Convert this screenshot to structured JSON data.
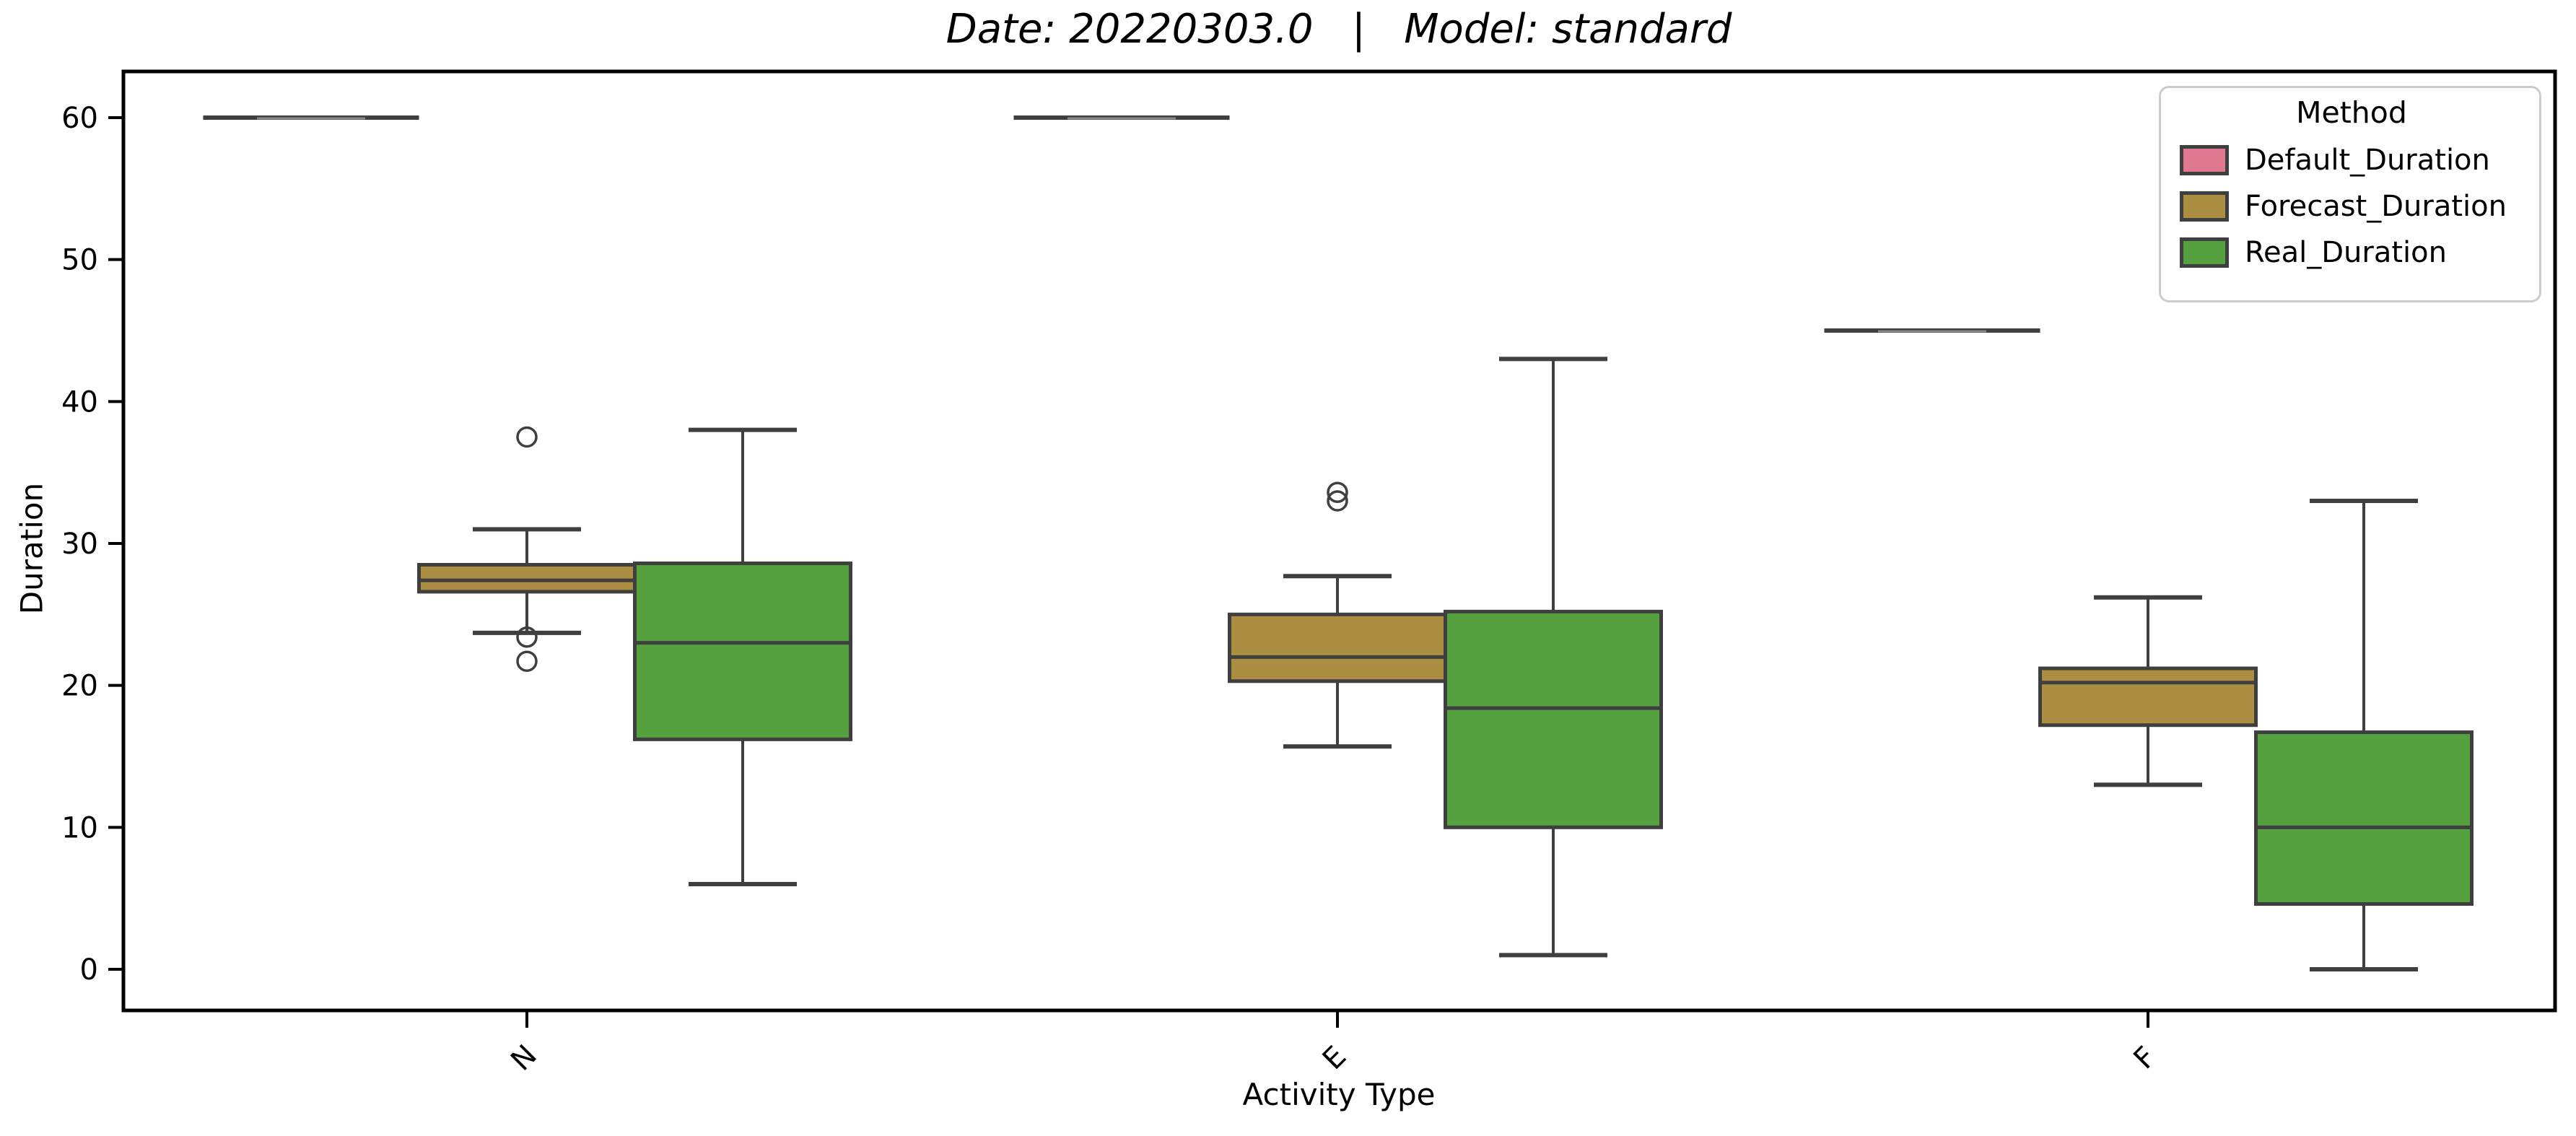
{
  "chart_data": {
    "type": "boxplot",
    "title": "Date: 20220303.0   |   Model: standard",
    "xlabel": "Activity Type",
    "ylabel": "Duration",
    "categories": [
      "N",
      "E",
      "F"
    ],
    "x_tick_rotation_deg": 45,
    "yticks": [
      0,
      10,
      20,
      30,
      40,
      50,
      60
    ],
    "ylim": [
      -3,
      63.2
    ],
    "grid": false,
    "legend": {
      "title": "Method",
      "position": "upper-right"
    },
    "edge_color": "#3f3f3f",
    "series": [
      {
        "name": "Default_Duration",
        "color": "#e0798f",
        "boxes": [
          {
            "category": "N",
            "min": 60,
            "q1": 60,
            "median": 60,
            "q3": 60,
            "max": 60,
            "outliers": []
          },
          {
            "category": "E",
            "min": 60,
            "q1": 60,
            "median": 60,
            "q3": 60,
            "max": 60,
            "outliers": []
          },
          {
            "category": "F",
            "min": 45,
            "q1": 45,
            "median": 45,
            "q3": 45,
            "max": 45,
            "outliers": []
          }
        ]
      },
      {
        "name": "Forecast_Duration",
        "color": "#ab8e42",
        "boxes": [
          {
            "category": "N",
            "min": 23.7,
            "q1": 26.6,
            "median": 27.4,
            "q3": 28.5,
            "max": 31,
            "outliers": [
              37.5,
              23.4,
              21.7
            ]
          },
          {
            "category": "E",
            "min": 15.7,
            "q1": 20.3,
            "median": 22,
            "q3": 25,
            "max": 27.7,
            "outliers": [
              33,
              33.6
            ]
          },
          {
            "category": "F",
            "min": 13,
            "q1": 17.2,
            "median": 20.2,
            "q3": 21.2,
            "max": 26.2,
            "outliers": []
          }
        ]
      },
      {
        "name": "Real_Duration",
        "color": "#56a13f",
        "boxes": [
          {
            "category": "N",
            "min": 6,
            "q1": 16.2,
            "median": 23,
            "q3": 28.6,
            "max": 38,
            "outliers": []
          },
          {
            "category": "E",
            "min": 1,
            "q1": 10,
            "median": 18.4,
            "q3": 25.2,
            "max": 43,
            "outliers": []
          },
          {
            "category": "F",
            "min": 0,
            "q1": 4.6,
            "median": 10,
            "q3": 16.7,
            "max": 33,
            "outliers": []
          }
        ]
      }
    ]
  }
}
